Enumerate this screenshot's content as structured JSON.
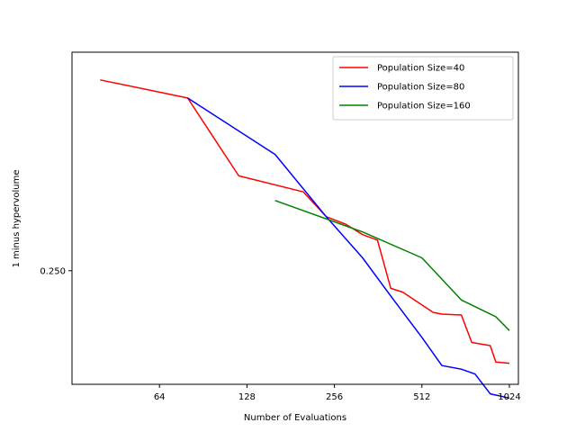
{
  "chart_data": {
    "type": "line",
    "xlabel": "Number of Evaluations",
    "ylabel": "1 minus hypervolume",
    "x_scale": "log2",
    "y_scale": "log",
    "xlim": [
      32,
      1100
    ],
    "ylim": [
      0.127,
      0.92
    ],
    "x_ticks": [
      64,
      128,
      256,
      512,
      1024
    ],
    "x_tick_labels": [
      "64",
      "128",
      "256",
      "512",
      "1024"
    ],
    "y_ticks": [
      0.25
    ],
    "y_tick_labels": [
      "0.250"
    ],
    "grid": false,
    "legend_position": "top-right",
    "series": [
      {
        "name": "Population Size=40",
        "color": "#ff0000",
        "points": [
          [
            40,
            0.78
          ],
          [
            80,
            0.7
          ],
          [
            120,
            0.44
          ],
          [
            200,
            0.4
          ],
          [
            240,
            0.345
          ],
          [
            280,
            0.33
          ],
          [
            320,
            0.31
          ],
          [
            360,
            0.3
          ],
          [
            400,
            0.225
          ],
          [
            440,
            0.22
          ],
          [
            560,
            0.195
          ],
          [
            600,
            0.193
          ],
          [
            700,
            0.192
          ],
          [
            760,
            0.163
          ],
          [
            880,
            0.16
          ],
          [
            920,
            0.145
          ],
          [
            1024,
            0.144
          ]
        ]
      },
      {
        "name": "Population Size=80",
        "color": "#0000ff",
        "points": [
          [
            80,
            0.7
          ],
          [
            160,
            0.5
          ],
          [
            240,
            0.345
          ],
          [
            320,
            0.27
          ],
          [
            400,
            0.215
          ],
          [
            512,
            0.168
          ],
          [
            600,
            0.142
          ],
          [
            700,
            0.139
          ],
          [
            780,
            0.135
          ],
          [
            880,
            0.12
          ],
          [
            1024,
            0.117
          ]
        ]
      },
      {
        "name": "Population Size=160",
        "color": "#008000",
        "points": [
          [
            160,
            0.38
          ],
          [
            320,
            0.315
          ],
          [
            512,
            0.27
          ],
          [
            700,
            0.21
          ],
          [
            920,
            0.19
          ],
          [
            1024,
            0.175
          ]
        ]
      }
    ]
  }
}
